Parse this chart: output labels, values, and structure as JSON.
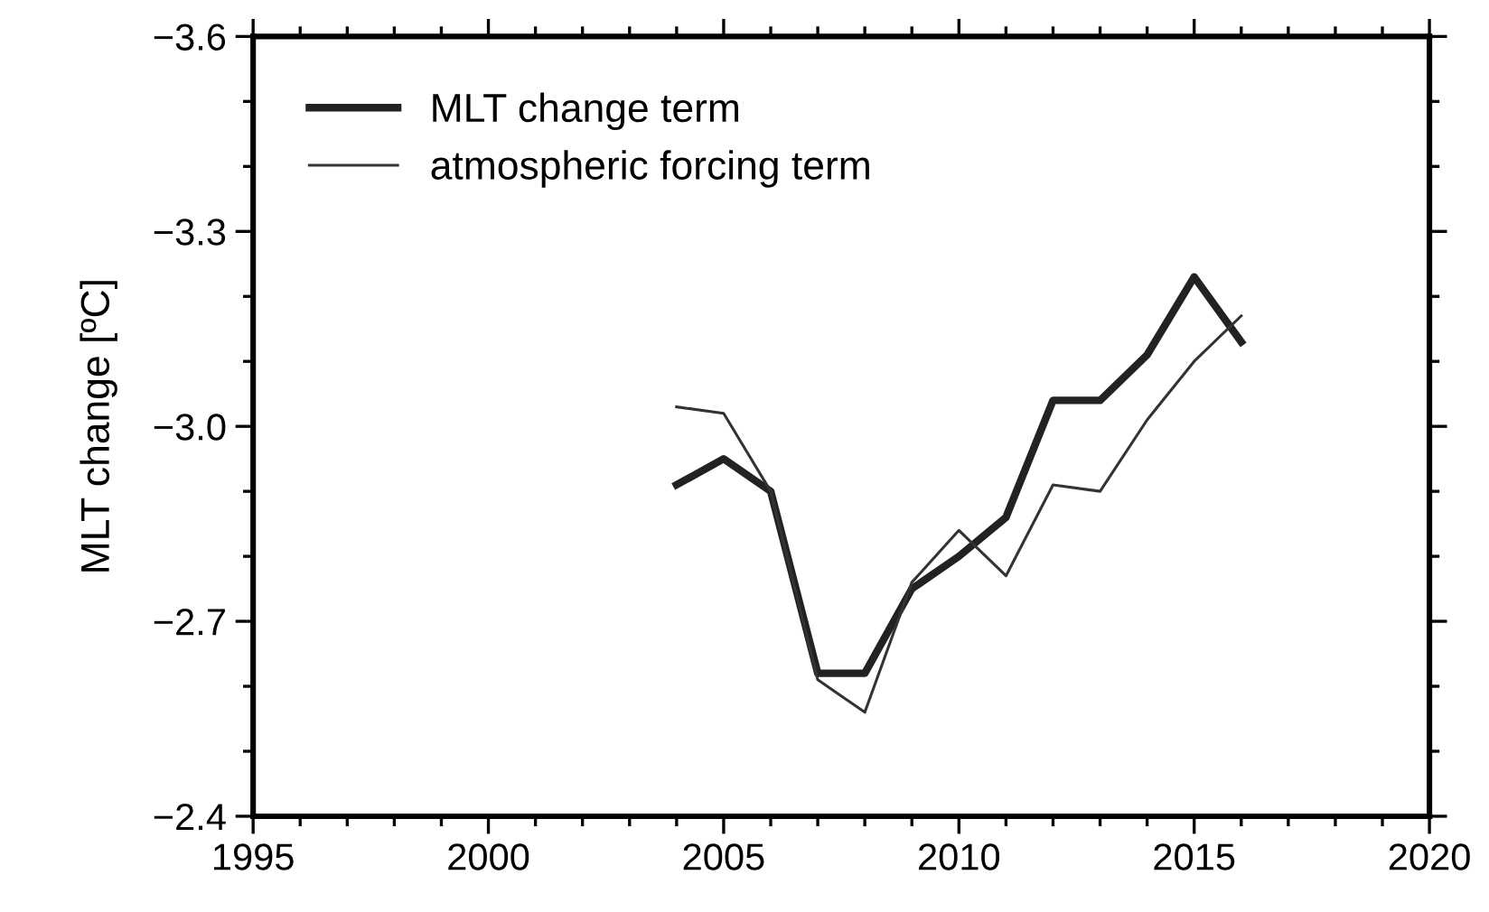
{
  "chart_data": {
    "type": "line",
    "xlabel": null,
    "ylabel": "MLT change [ºC]",
    "x": [
      2004,
      2005,
      2006,
      2007,
      2008,
      2009,
      2010,
      2011,
      2012,
      2013,
      2014,
      2015,
      2016
    ],
    "series": [
      {
        "name": "MLT change term",
        "color": "#222222",
        "values": [
          -2.91,
          -2.95,
          -2.9,
          -2.62,
          -2.62,
          -2.75,
          -2.8,
          -2.86,
          -3.04,
          -3.04,
          -3.11,
          -3.23,
          -3.13
        ]
      },
      {
        "name": "atmospheric forcing term",
        "color": "#333333",
        "values": [
          -3.03,
          -3.02,
          -2.9,
          -2.61,
          -2.56,
          -2.76,
          -2.84,
          -2.77,
          -2.91,
          -2.9,
          -3.01,
          -3.1,
          -3.17
        ]
      }
    ],
    "xlim": [
      1995,
      2020
    ],
    "xticks": [
      1995,
      {
        "value": 1996,
        "label": null
      },
      {
        "value": 1997,
        "label": null
      },
      {
        "value": 1998,
        "label": null
      },
      {
        "value": 1999,
        "label": null
      },
      2000,
      {
        "value": 2001,
        "label": null
      },
      {
        "value": 2002,
        "label": null
      },
      {
        "value": 2003,
        "label": null
      },
      {
        "value": 2004,
        "label": null
      },
      2005,
      {
        "value": 2006,
        "label": null
      },
      {
        "value": 2007,
        "label": null
      },
      {
        "value": 2008,
        "label": null
      },
      {
        "value": 2009,
        "label": null
      },
      2010,
      {
        "value": 2011,
        "label": null
      },
      {
        "value": 2012,
        "label": null
      },
      {
        "value": 2013,
        "label": null
      },
      {
        "value": 2014,
        "label": null
      },
      2015,
      {
        "value": 2016,
        "label": null
      },
      {
        "value": 2017,
        "label": null
      },
      {
        "value": 2018,
        "label": null
      },
      {
        "value": 2019,
        "label": null
      },
      2020
    ],
    "ylim": [
      -2.4,
      -3.6
    ],
    "yticks": [
      {
        "value": -2.4,
        "label": "−2.4"
      },
      {
        "value": -2.5,
        "label": null
      },
      {
        "value": -2.6,
        "label": null
      },
      {
        "value": -2.7,
        "label": "−2.7"
      },
      {
        "value": -2.8,
        "label": null
      },
      {
        "value": -2.9,
        "label": null
      },
      {
        "value": -3.0,
        "label": "−3.0"
      },
      {
        "value": -3.1,
        "label": null
      },
      {
        "value": -3.2,
        "label": null
      },
      {
        "value": -3.3,
        "label": "−3.3"
      },
      {
        "value": -3.4,
        "label": null
      },
      {
        "value": -3.5,
        "label": null
      },
      {
        "value": -3.6,
        "label": "−3.6"
      }
    ],
    "grid": false,
    "legend": "top left",
    "marker": "none",
    "line_style": "solid"
  }
}
